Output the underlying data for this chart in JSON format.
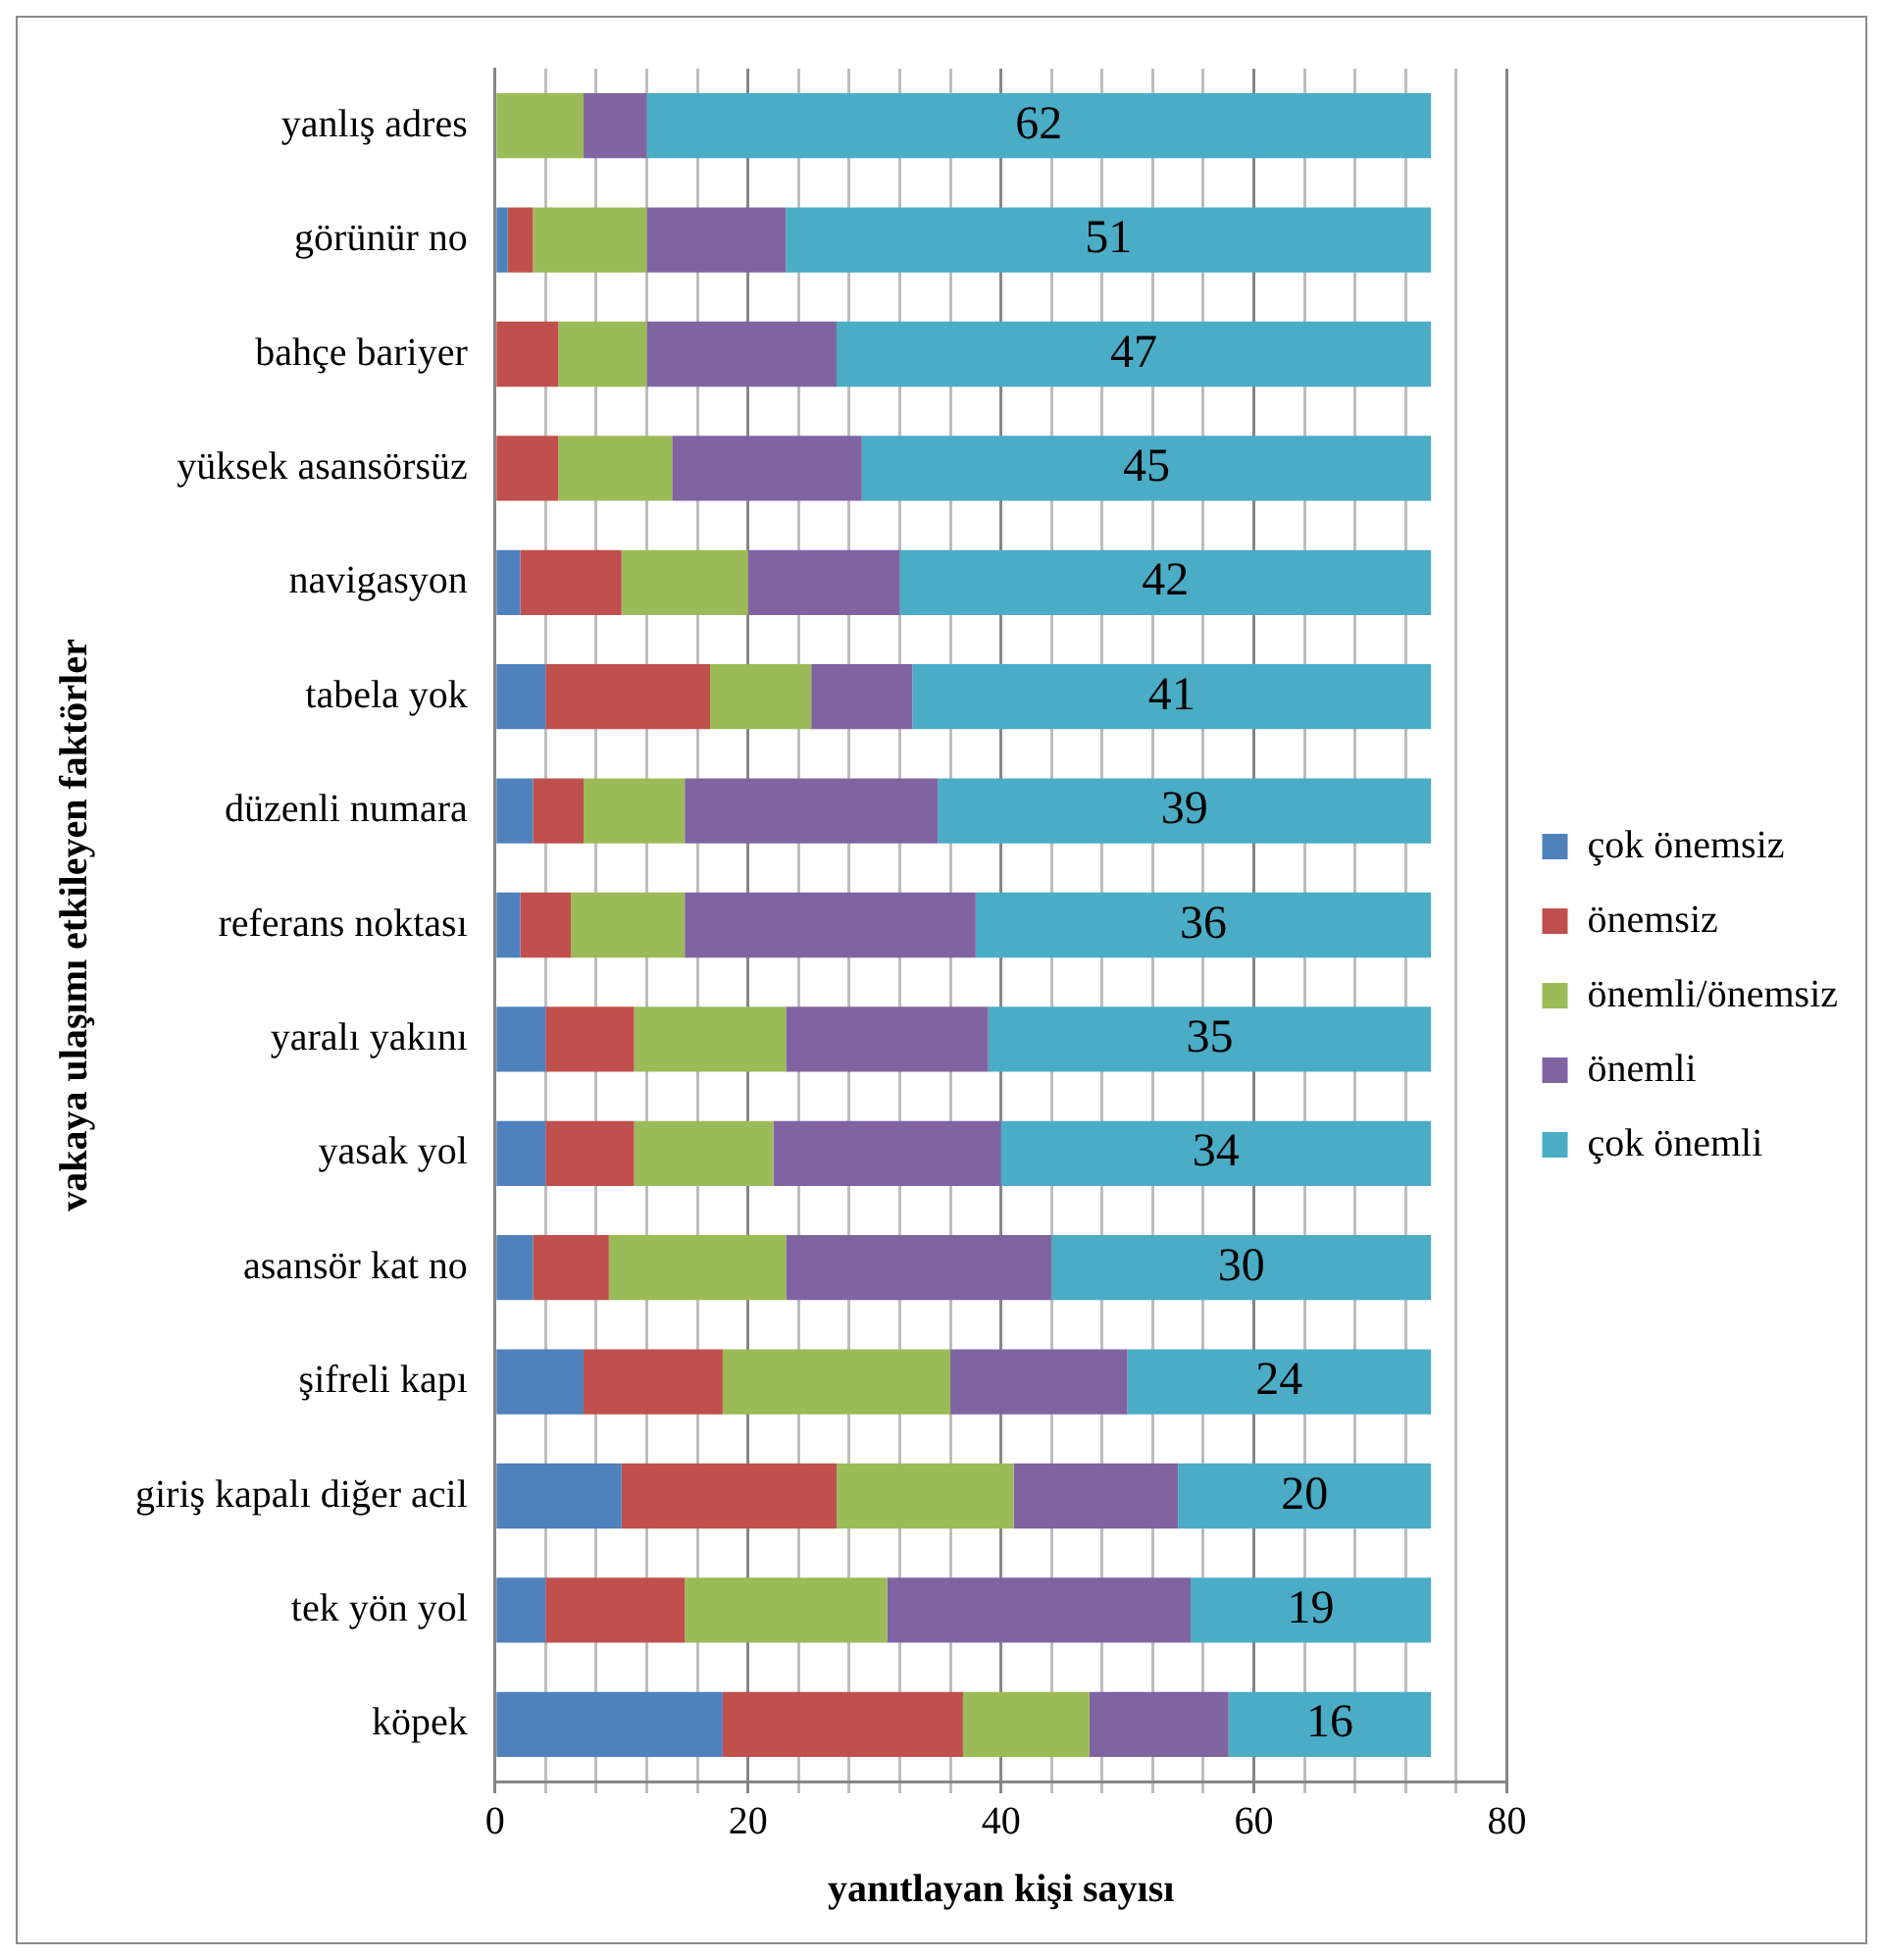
{
  "chart_data": {
    "type": "bar",
    "orientation": "horizontal",
    "stacked": true,
    "xlabel": "yanıtlayan kişi sayısı",
    "ylabel": "vakaya ulaşımı etkileyen faktörler",
    "categories": [
      "yanlış adres",
      "görünür no",
      "bahçe bariyer",
      "yüksek asansörsüz",
      "navigasyon",
      "tabela yok",
      "düzenli numara",
      "referans noktası",
      "yaralı yakını",
      "yasak yol",
      "asansör kat no",
      "şifreli kapı",
      "giriş kapalı diğer acil",
      "tek yön yol",
      "köpek"
    ],
    "series": [
      {
        "name": "çok önemsiz",
        "color": "#4f81bd",
        "values": [
          0,
          1,
          0,
          0,
          2,
          4,
          3,
          2,
          4,
          4,
          3,
          7,
          10,
          4,
          18
        ]
      },
      {
        "name": "önemsiz",
        "color": "#c0504d",
        "values": [
          0,
          2,
          5,
          5,
          8,
          13,
          4,
          4,
          7,
          7,
          6,
          11,
          17,
          11,
          19
        ]
      },
      {
        "name": "önemli/önemsiz",
        "color": "#9bbb59",
        "values": [
          7,
          9,
          7,
          9,
          10,
          8,
          8,
          9,
          12,
          11,
          14,
          18,
          14,
          16,
          10
        ]
      },
      {
        "name": "önemli",
        "color": "#8064a2",
        "values": [
          5,
          11,
          15,
          15,
          12,
          8,
          20,
          23,
          16,
          18,
          21,
          14,
          13,
          24,
          11
        ]
      },
      {
        "name": "çok önemli",
        "color": "#4bacc6",
        "values": [
          62,
          51,
          47,
          45,
          42,
          41,
          39,
          36,
          35,
          34,
          30,
          24,
          20,
          19,
          16
        ],
        "value_labels": [
          "62",
          "51",
          "47",
          "45",
          "42",
          "41",
          "39",
          "36",
          "35",
          "34",
          "30",
          "24",
          "20",
          "19",
          "16"
        ]
      }
    ],
    "xlim": [
      0,
      80
    ],
    "xticks": [
      0,
      {
        "value": 4,
        "label": null
      },
      {
        "value": 8,
        "label": null
      },
      {
        "value": 12,
        "label": null
      },
      {
        "value": 16,
        "label": null
      },
      20,
      {
        "value": 24,
        "label": null
      },
      {
        "value": 28,
        "label": null
      },
      {
        "value": 32,
        "label": null
      },
      {
        "value": 36,
        "label": null
      },
      40,
      {
        "value": 44,
        "label": null
      },
      {
        "value": 48,
        "label": null
      },
      {
        "value": 52,
        "label": null
      },
      {
        "value": 56,
        "label": null
      },
      60,
      {
        "value": 64,
        "label": null
      },
      {
        "value": 68,
        "label": null
      },
      {
        "value": 72,
        "label": null
      },
      {
        "value": 76,
        "label": null
      },
      80
    ],
    "grid": "x",
    "legend": "right"
  }
}
